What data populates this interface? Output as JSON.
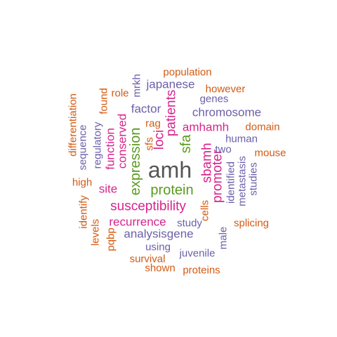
{
  "colors": {
    "gray": "#555555",
    "green": "#5a9a1f",
    "magenta": "#d6248c",
    "purple": "#6c5fa8",
    "orange": "#d35a12"
  },
  "words": [
    {
      "text": "amh",
      "color": "gray",
      "size": "xl"
    },
    {
      "text": "protein",
      "color": "green",
      "size": "l"
    },
    {
      "text": "expression",
      "color": "green",
      "size": "l"
    },
    {
      "text": "sfa",
      "color": "green",
      "size": "l"
    },
    {
      "text": "susceptibility",
      "color": "magenta",
      "size": "l"
    },
    {
      "text": "sbamh",
      "color": "magenta",
      "size": "l"
    },
    {
      "text": "promoter",
      "color": "magenta",
      "size": "l"
    },
    {
      "text": "loci",
      "color": "magenta",
      "size": "l"
    },
    {
      "text": "patients",
      "color": "magenta",
      "size": "l"
    },
    {
      "text": "amhamh",
      "color": "magenta",
      "size": "l"
    },
    {
      "text": "recurrence",
      "color": "magenta",
      "size": "m"
    },
    {
      "text": "site",
      "color": "magenta",
      "size": "m"
    },
    {
      "text": "function",
      "color": "magenta",
      "size": "m"
    },
    {
      "text": "conserved",
      "color": "magenta",
      "size": "m"
    },
    {
      "text": "factor",
      "color": "purple",
      "size": "m"
    },
    {
      "text": "chromosome",
      "color": "purple",
      "size": "m"
    },
    {
      "text": "japanese",
      "color": "purple",
      "size": "m"
    },
    {
      "text": "analysisgene",
      "color": "purple",
      "size": "m"
    },
    {
      "text": "genes",
      "color": "purple",
      "size": "s"
    },
    {
      "text": "human",
      "color": "purple",
      "size": "s"
    },
    {
      "text": "two",
      "color": "purple",
      "size": "s"
    },
    {
      "text": "identified",
      "color": "purple",
      "size": "s"
    },
    {
      "text": "metastasis",
      "color": "purple",
      "size": "s"
    },
    {
      "text": "studies",
      "color": "purple",
      "size": "s"
    },
    {
      "text": "study",
      "color": "purple",
      "size": "s"
    },
    {
      "text": "juvenile",
      "color": "purple",
      "size": "s"
    },
    {
      "text": "using",
      "color": "purple",
      "size": "s"
    },
    {
      "text": "male",
      "color": "purple",
      "size": "s"
    },
    {
      "text": "regulatory",
      "color": "purple",
      "size": "s"
    },
    {
      "text": "sequence",
      "color": "purple",
      "size": "s"
    },
    {
      "text": "mrkh",
      "color": "purple",
      "size": "s"
    },
    {
      "text": "population",
      "color": "orange",
      "size": "s"
    },
    {
      "text": "however",
      "color": "orange",
      "size": "s"
    },
    {
      "text": "role",
      "color": "orange",
      "size": "s"
    },
    {
      "text": "found",
      "color": "orange",
      "size": "s"
    },
    {
      "text": "differentiation",
      "color": "orange",
      "size": "s"
    },
    {
      "text": "rag",
      "color": "orange",
      "size": "s"
    },
    {
      "text": "sfs",
      "color": "orange",
      "size": "s"
    },
    {
      "text": "domain",
      "color": "orange",
      "size": "s"
    },
    {
      "text": "mouse",
      "color": "orange",
      "size": "s"
    },
    {
      "text": "high",
      "color": "orange",
      "size": "s"
    },
    {
      "text": "identify",
      "color": "orange",
      "size": "s"
    },
    {
      "text": "levels",
      "color": "orange",
      "size": "s"
    },
    {
      "text": "pqbp",
      "color": "orange",
      "size": "s"
    },
    {
      "text": "cells",
      "color": "orange",
      "size": "s"
    },
    {
      "text": "splicing",
      "color": "orange",
      "size": "s"
    },
    {
      "text": "survival",
      "color": "orange",
      "size": "s"
    },
    {
      "text": "shown",
      "color": "orange",
      "size": "s"
    },
    {
      "text": "proteins",
      "color": "orange",
      "size": "s"
    }
  ]
}
